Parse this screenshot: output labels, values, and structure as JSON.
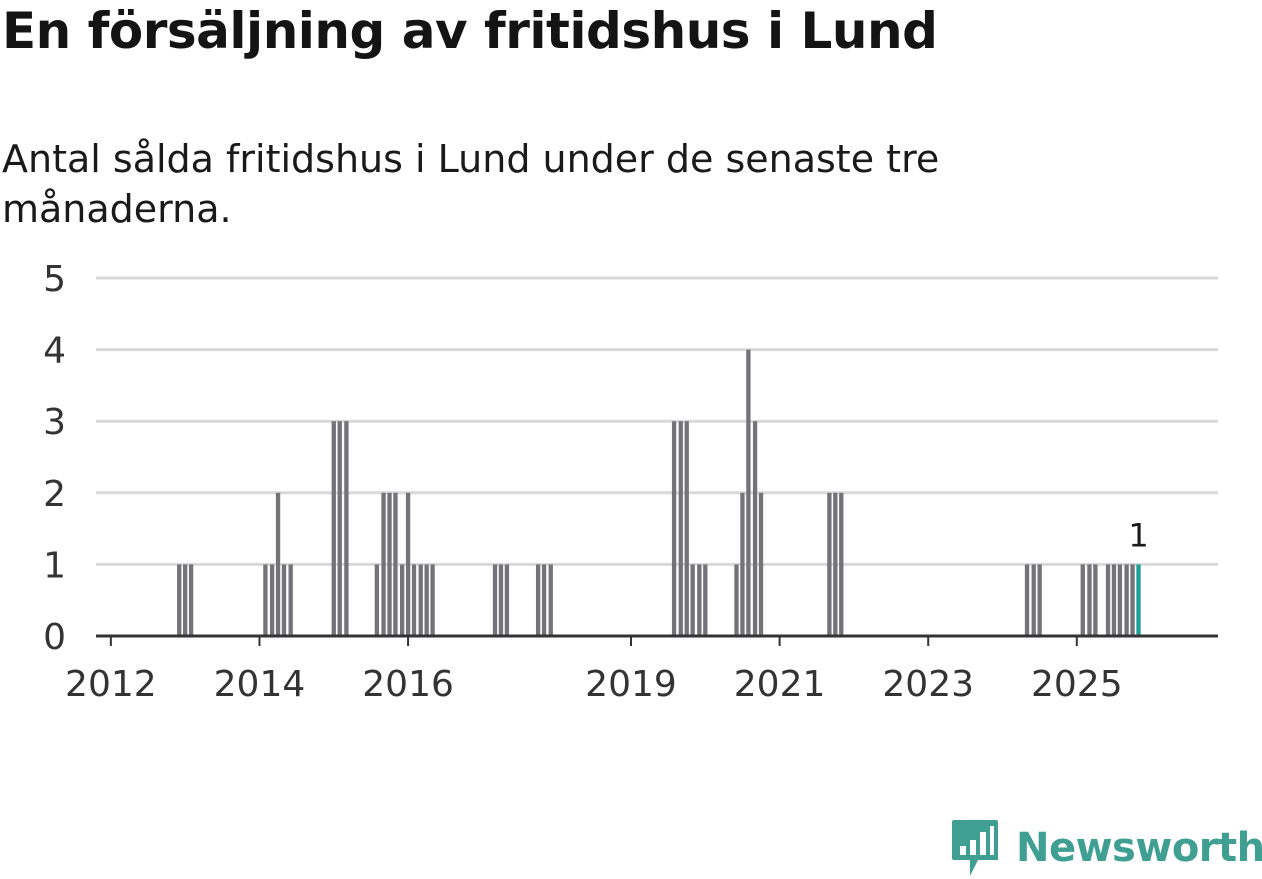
{
  "title": "En försäljning av fritidshus i Lund",
  "subtitle": "Antal sålda fritidshus i Lund under de senaste tre månaderna.",
  "brand": {
    "name": "Newsworthy",
    "icon": "newsworthy-logo-icon",
    "color": "#3f9f93"
  },
  "colors": {
    "bar": "#737378",
    "highlight": "#1a9e96",
    "grid": "#d9d9d9",
    "axis": "#333333"
  },
  "chart_data": {
    "type": "bar",
    "title": "En försäljning av fritidshus i Lund",
    "xlabel": "",
    "ylabel": "",
    "ylim": [
      0,
      5
    ],
    "yticks": [
      0,
      1,
      2,
      3,
      4,
      5
    ],
    "xlim": [
      2011.8,
      2026.9
    ],
    "xticks": [
      {
        "value": 2012.0,
        "label": "2012"
      },
      {
        "value": 2014.0,
        "label": "2014"
      },
      {
        "value": 2016.0,
        "label": "2016"
      },
      {
        "value": 2019.0,
        "label": "2019"
      },
      {
        "value": 2021.0,
        "label": "2021"
      },
      {
        "value": 2023.0,
        "label": "2023"
      },
      {
        "value": 2025.0,
        "label": "2025"
      }
    ],
    "bar_width": 0.058,
    "highlight_label": "1",
    "bars": [
      {
        "x": 2012.92,
        "value": 1
      },
      {
        "x": 2013.0,
        "value": 1
      },
      {
        "x": 2013.08,
        "value": 1
      },
      {
        "x": 2014.08,
        "value": 1
      },
      {
        "x": 2014.17,
        "value": 1
      },
      {
        "x": 2014.25,
        "value": 2
      },
      {
        "x": 2014.33,
        "value": 1
      },
      {
        "x": 2014.42,
        "value": 1
      },
      {
        "x": 2015.0,
        "value": 3
      },
      {
        "x": 2015.08,
        "value": 3
      },
      {
        "x": 2015.17,
        "value": 3
      },
      {
        "x": 2015.58,
        "value": 1
      },
      {
        "x": 2015.67,
        "value": 2
      },
      {
        "x": 2015.75,
        "value": 2
      },
      {
        "x": 2015.83,
        "value": 2
      },
      {
        "x": 2015.92,
        "value": 1
      },
      {
        "x": 2016.0,
        "value": 2
      },
      {
        "x": 2016.08,
        "value": 1
      },
      {
        "x": 2016.17,
        "value": 1
      },
      {
        "x": 2016.25,
        "value": 1
      },
      {
        "x": 2016.33,
        "value": 1
      },
      {
        "x": 2017.17,
        "value": 1
      },
      {
        "x": 2017.25,
        "value": 1
      },
      {
        "x": 2017.33,
        "value": 1
      },
      {
        "x": 2017.75,
        "value": 1
      },
      {
        "x": 2017.83,
        "value": 1
      },
      {
        "x": 2017.92,
        "value": 1
      },
      {
        "x": 2019.58,
        "value": 3
      },
      {
        "x": 2019.67,
        "value": 3
      },
      {
        "x": 2019.75,
        "value": 3
      },
      {
        "x": 2019.83,
        "value": 1
      },
      {
        "x": 2019.92,
        "value": 1
      },
      {
        "x": 2020.0,
        "value": 1
      },
      {
        "x": 2020.42,
        "value": 1
      },
      {
        "x": 2020.5,
        "value": 2
      },
      {
        "x": 2020.58,
        "value": 4
      },
      {
        "x": 2020.67,
        "value": 3
      },
      {
        "x": 2020.75,
        "value": 2
      },
      {
        "x": 2021.67,
        "value": 2
      },
      {
        "x": 2021.75,
        "value": 2
      },
      {
        "x": 2021.83,
        "value": 2
      },
      {
        "x": 2024.33,
        "value": 1
      },
      {
        "x": 2024.42,
        "value": 1
      },
      {
        "x": 2024.5,
        "value": 1
      },
      {
        "x": 2025.08,
        "value": 1
      },
      {
        "x": 2025.17,
        "value": 1
      },
      {
        "x": 2025.25,
        "value": 1
      },
      {
        "x": 2025.42,
        "value": 1
      },
      {
        "x": 2025.5,
        "value": 1
      },
      {
        "x": 2025.58,
        "value": 1
      },
      {
        "x": 2025.67,
        "value": 1
      },
      {
        "x": 2025.75,
        "value": 1
      },
      {
        "x": 2025.83,
        "value": 1,
        "highlight": true
      }
    ]
  }
}
